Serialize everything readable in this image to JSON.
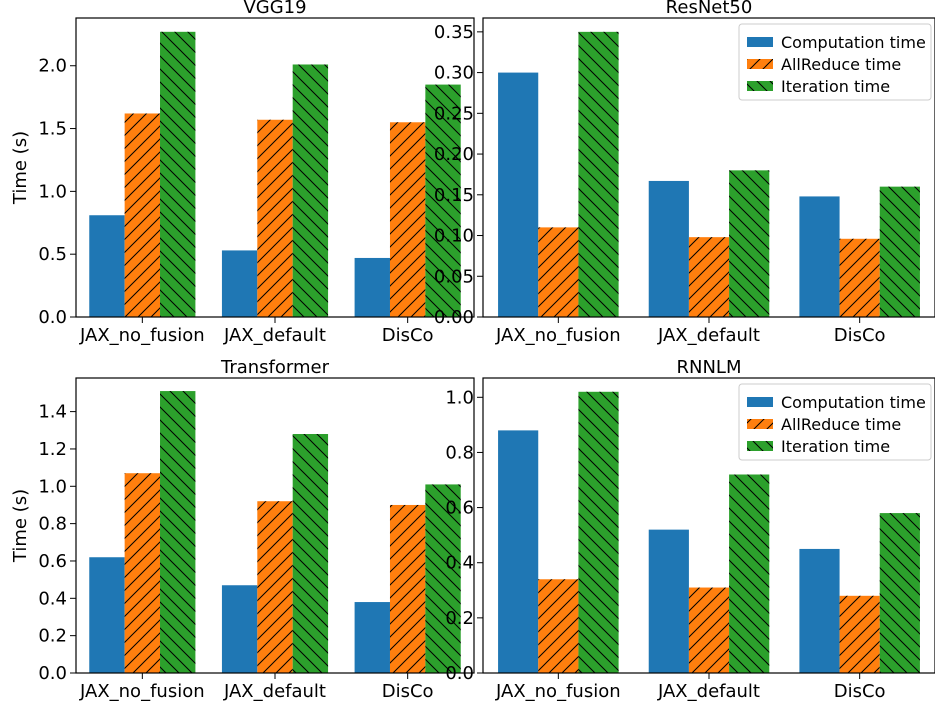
{
  "chart_data": [
    {
      "type": "bar",
      "title": "VGG19",
      "ylabel": "Time (s)",
      "categories": [
        "JAX_no_fusion",
        "JAX_default",
        "DisCo"
      ],
      "ylim": [
        0,
        2.38
      ],
      "yticks": [
        "0.0",
        "0.5",
        "1.0",
        "1.5",
        "2.0"
      ],
      "series": [
        {
          "values": [
            0.81,
            0.53,
            0.47
          ]
        },
        {
          "values": [
            1.62,
            1.57,
            1.55
          ]
        },
        {
          "values": [
            2.27,
            2.01,
            1.85
          ]
        }
      ]
    },
    {
      "type": "bar",
      "title": "ResNet50",
      "ylabel": "",
      "categories": [
        "JAX_no_fusion",
        "JAX_default",
        "DisCo"
      ],
      "ylim": [
        0,
        0.367
      ],
      "yticks": [
        "0.00",
        "0.05",
        "0.10",
        "0.15",
        "0.20",
        "0.25",
        "0.30",
        "0.35"
      ],
      "legend": "top-right",
      "series": [
        {
          "name": "Computation time",
          "values": [
            0.3,
            0.167,
            0.148
          ]
        },
        {
          "name": "AllReduce time",
          "values": [
            0.11,
            0.098,
            0.096
          ]
        },
        {
          "name": "Iteration time",
          "values": [
            0.35,
            0.18,
            0.16
          ]
        }
      ]
    },
    {
      "type": "bar",
      "title": "Transformer",
      "ylabel": "Time (s)",
      "categories": [
        "JAX_no_fusion",
        "JAX_default",
        "DisCo"
      ],
      "ylim": [
        0,
        1.58
      ],
      "yticks": [
        "0.0",
        "0.2",
        "0.4",
        "0.6",
        "0.8",
        "1.0",
        "1.2",
        "1.4"
      ],
      "series": [
        {
          "values": [
            0.62,
            0.47,
            0.38
          ]
        },
        {
          "values": [
            1.07,
            0.92,
            0.9
          ]
        },
        {
          "values": [
            1.51,
            1.28,
            1.01
          ]
        }
      ]
    },
    {
      "type": "bar",
      "title": "RNNLM",
      "ylabel": "",
      "categories": [
        "JAX_no_fusion",
        "JAX_default",
        "DisCo"
      ],
      "ylim": [
        0,
        1.07
      ],
      "yticks": [
        "0.0",
        "0.2",
        "0.4",
        "0.6",
        "0.8",
        "1.0"
      ],
      "legend": "top-right",
      "series": [
        {
          "name": "Computation time",
          "values": [
            0.88,
            0.52,
            0.45
          ]
        },
        {
          "name": "AllReduce time",
          "values": [
            0.34,
            0.31,
            0.28
          ]
        },
        {
          "name": "Iteration time",
          "values": [
            1.02,
            0.72,
            0.58
          ]
        }
      ]
    }
  ],
  "colors": {
    "computation": "#1f77b4",
    "allreduce": "#ff7f0e",
    "iteration": "#2ca02c",
    "hatch": "#000000"
  }
}
